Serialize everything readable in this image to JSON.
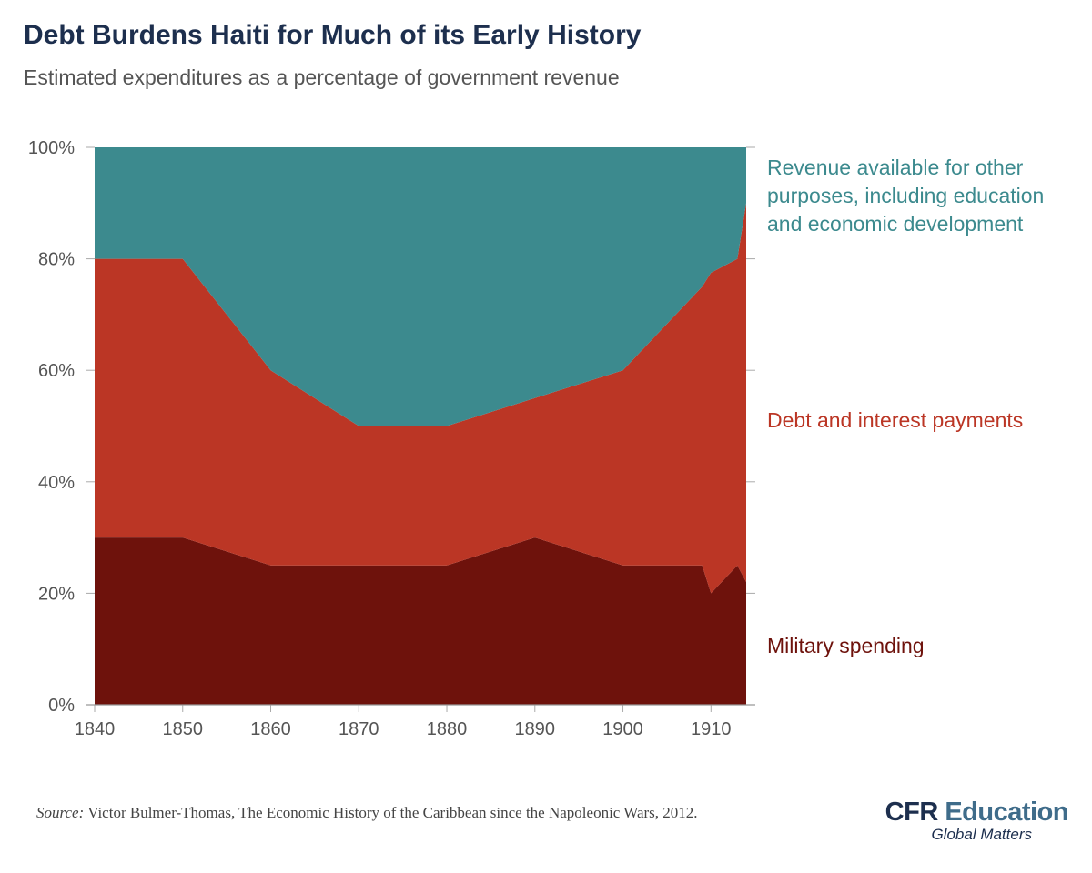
{
  "header": {
    "title": "Debt Burdens Haiti for Much of its Early History",
    "subtitle": "Estimated expenditures as a percentage of government revenue"
  },
  "chart_data": {
    "type": "area",
    "stacked": true,
    "x": [
      1840,
      1850,
      1860,
      1870,
      1880,
      1890,
      1900,
      1909,
      1910,
      1913,
      1914
    ],
    "series": [
      {
        "name": "Military spending",
        "color": "#6e120c",
        "values": [
          30,
          30,
          25,
          25,
          25,
          30,
          25,
          25,
          20,
          25,
          22
        ]
      },
      {
        "name": "Debt and interest payments",
        "color": "#bb3625",
        "values": [
          50,
          50,
          35,
          25,
          25,
          25,
          35,
          50,
          57.5,
          55,
          68
        ]
      },
      {
        "name": "Revenue available for other purposes, including education and economic development",
        "color": "#3c8a8e",
        "values": [
          20,
          20,
          40,
          50,
          50,
          45,
          40,
          25,
          22.5,
          20,
          10
        ]
      }
    ],
    "legend_lines": {
      "revenue": [
        "Revenue available for other",
        "purposes, including education",
        "and economic development"
      ],
      "debt": [
        "Debt and interest payments"
      ],
      "military": [
        "Military spending"
      ]
    },
    "xticks": [
      1840,
      1850,
      1860,
      1870,
      1880,
      1890,
      1900,
      1910
    ],
    "xtick_labels": [
      "1840",
      "1850",
      "1860",
      "1870",
      "1880",
      "1890",
      "1900",
      "1910"
    ],
    "yticks": [
      0,
      20,
      40,
      60,
      80,
      100
    ],
    "ytick_labels": [
      "0%",
      "20%",
      "40%",
      "60%",
      "80%",
      "100%"
    ],
    "xlim": [
      1840,
      1914
    ],
    "ylim": [
      0,
      100
    ],
    "grid": false,
    "legend": "right"
  },
  "footer": {
    "source_label": "Source:",
    "source_text": "Victor Bulmer-Thomas, The Economic History of the Caribbean since the Napoleonic Wars, 2012.",
    "logo_cfr": "CFR",
    "logo_edu": "Education",
    "logo_tagline": "Global Matters"
  }
}
